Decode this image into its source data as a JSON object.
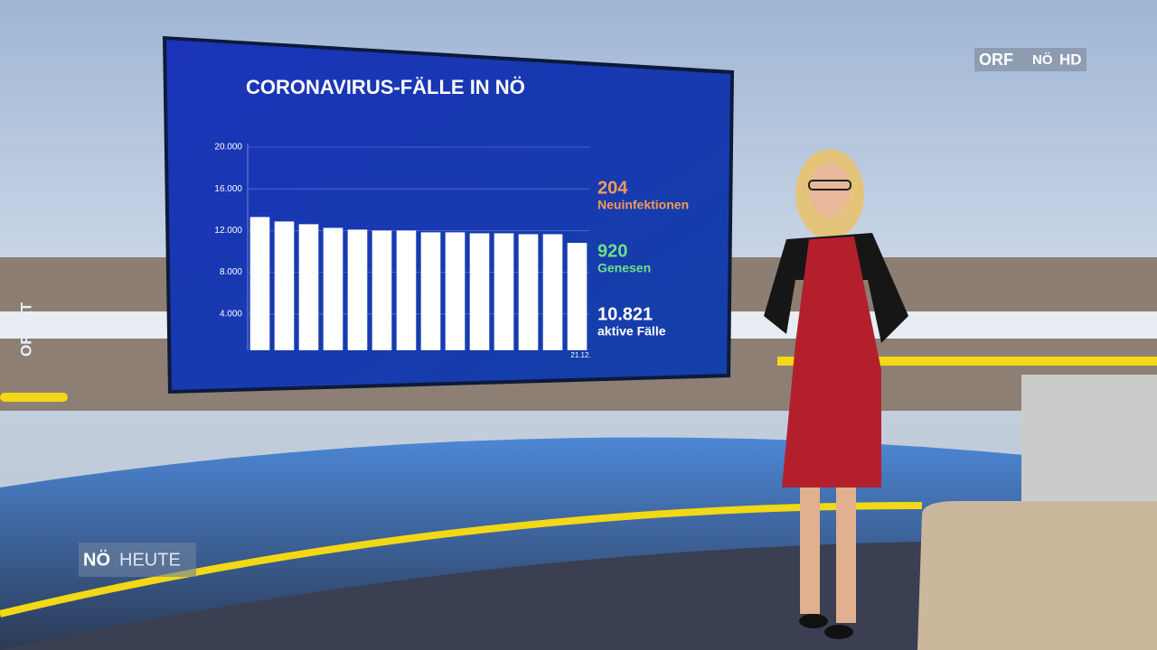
{
  "chart_data": {
    "type": "bar",
    "title": "CORONAVIRUS-FÄLLE IN NÖ",
    "categories": [
      null,
      null,
      null,
      null,
      null,
      null,
      null,
      null,
      null,
      null,
      null,
      null,
      null,
      "21.12."
    ],
    "values": [
      13300,
      12870,
      12610,
      12260,
      12090,
      12000,
      12000,
      11830,
      11830,
      11740,
      11740,
      11650,
      11650,
      10821
    ],
    "color": "#ffffff",
    "ylim": [
      0,
      20000
    ],
    "yticks": [
      {
        "value": 4000,
        "label": "4.000"
      },
      {
        "value": 8000,
        "label": "8.000"
      },
      {
        "value": 12000,
        "label": "12.000"
      },
      {
        "value": 16000,
        "label": "16.000"
      },
      {
        "value": 20000,
        "label": "20.000"
      }
    ],
    "grid": true,
    "annotations": [
      {
        "number": "204",
        "text": "Neuinfektionen",
        "color": "#f39a5a"
      },
      {
        "number": "920",
        "text": "Genesen",
        "color": "#6ee08a"
      },
      {
        "number": "10.821",
        "text": "aktive Fälle",
        "color": "#ffffff"
      }
    ]
  },
  "logo": {
    "brand": "ORF",
    "region": "NÖ",
    "quality": "HD"
  },
  "show": {
    "region": "NÖ",
    "name": "HEUTE"
  },
  "side_text": "ORF.AT"
}
